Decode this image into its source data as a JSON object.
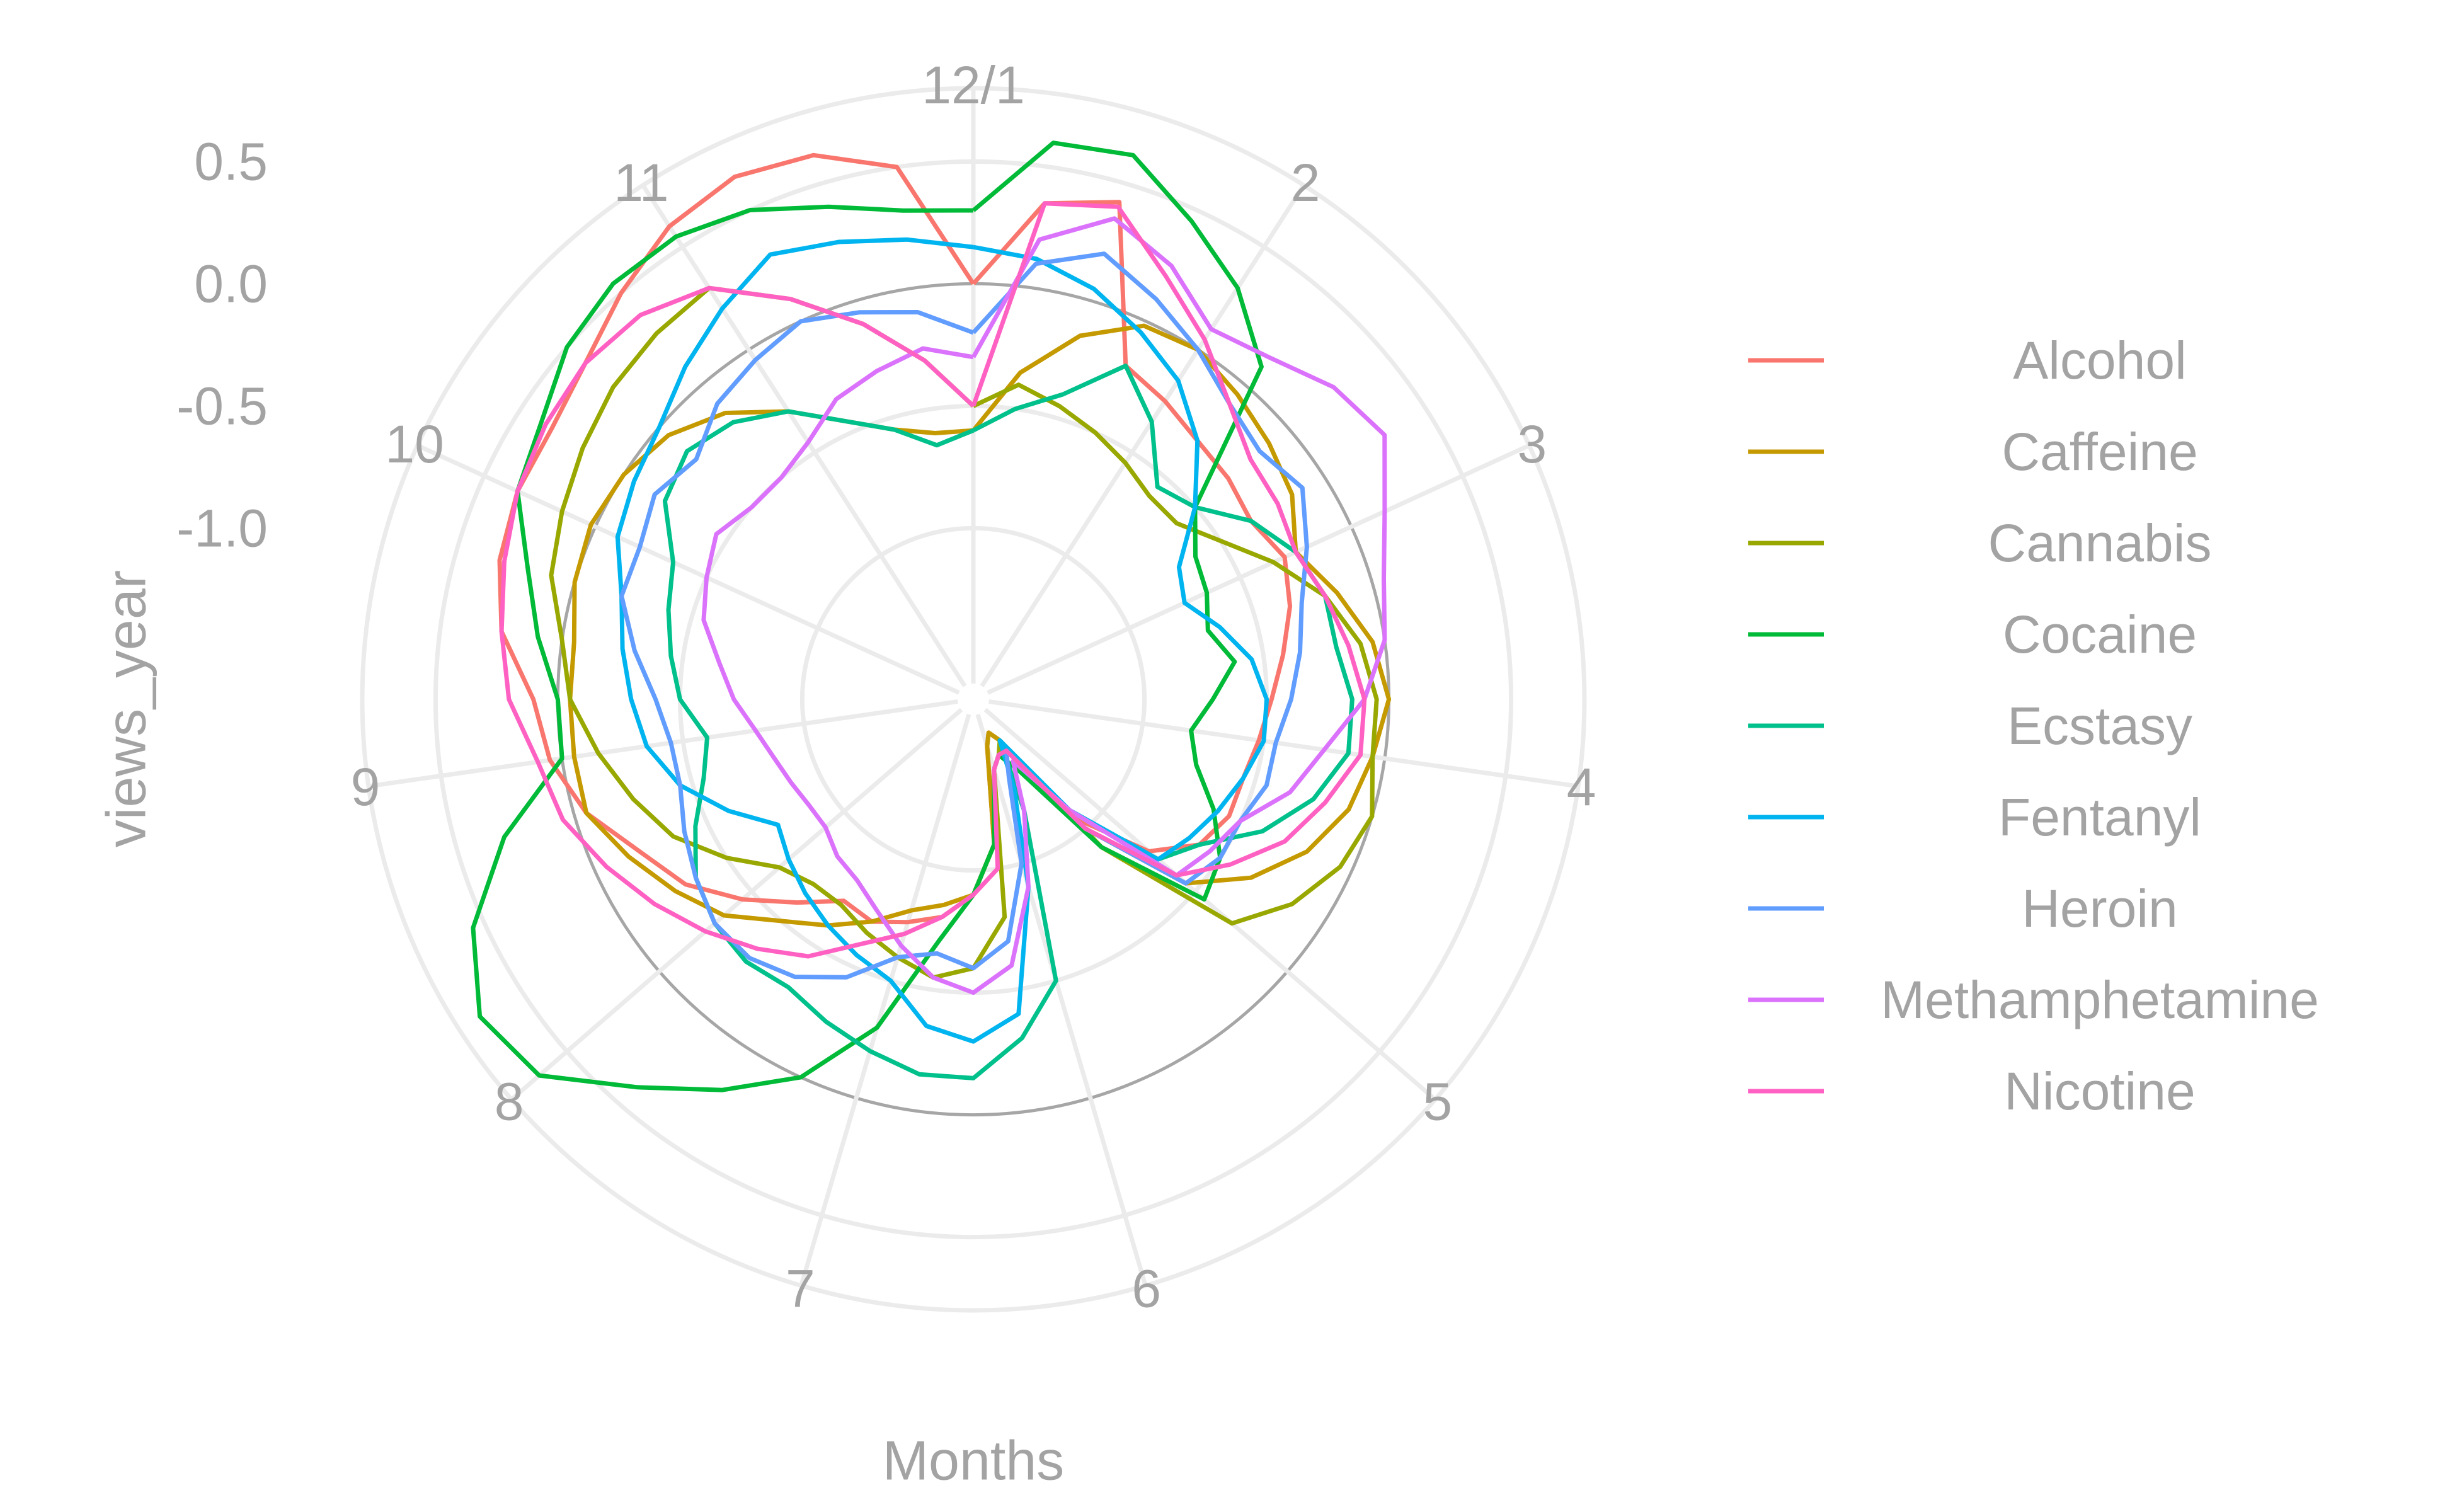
{
  "chart_data": {
    "type": "line",
    "coord": "polar",
    "xlabel": "Months",
    "ylabel": "views_year",
    "month_labels": [
      "12/1",
      "2",
      "3",
      "4",
      "5",
      "6",
      "7",
      "8",
      "9",
      "10",
      "11"
    ],
    "month_positions": [
      1,
      2,
      3,
      4,
      5,
      6,
      7,
      8,
      9,
      10,
      11
    ],
    "x_period": 11,
    "y_ticks": [
      -1.0,
      -0.5,
      0.0,
      0.5
    ],
    "y_tick_labels": [
      "-1.0",
      "-0.5",
      "0.0",
      "0.5"
    ],
    "ylim": [
      -1.7,
      0.8
    ],
    "grid": true,
    "legend_position": "right",
    "x": [
      1.0,
      1.25,
      1.5,
      1.75,
      2.0,
      2.25,
      2.5,
      2.75,
      3.0,
      3.25,
      3.5,
      3.75,
      4.0,
      4.25,
      4.5,
      4.75,
      5.0,
      5.25,
      5.5,
      5.75,
      6.0,
      6.25,
      6.5,
      6.75,
      7.0,
      7.25,
      7.5,
      7.75,
      8.0,
      8.25,
      8.5,
      8.75,
      9.0,
      9.25,
      9.5,
      9.75,
      10.0,
      10.25,
      10.5,
      10.75,
      11.0,
      11.25,
      11.5,
      11.75,
      12.0
    ],
    "series": [
      {
        "name": "Alcohol",
        "color": "#F8766D",
        "values": [
          0.0,
          0.35,
          0.42,
          -0.2,
          -0.25,
          -0.3,
          -0.32,
          -0.35,
          -0.3,
          -0.35,
          -0.42,
          -0.48,
          -0.52,
          -0.55,
          -0.55,
          -0.6,
          -0.75,
          -1.05,
          -1.5,
          -1.55,
          -1.5,
          -1.1,
          -0.9,
          -0.8,
          -0.75,
          -0.7,
          -0.72,
          -0.6,
          -0.45,
          -0.3,
          -0.2,
          -0.05,
          0.05,
          0.1,
          0.25,
          0.32,
          0.35,
          0.35,
          0.4,
          0.5,
          0.6,
          0.65,
          0.62,
          0.5,
          0.0
        ]
      },
      {
        "name": "Caffeine",
        "color": "#C49A00",
        "values": [
          -0.6,
          -0.35,
          -0.15,
          -0.02,
          0.0,
          -0.05,
          -0.1,
          -0.15,
          -0.25,
          -0.15,
          -0.05,
          0.0,
          -0.05,
          -0.1,
          -0.2,
          -0.35,
          -0.55,
          -1.0,
          -1.5,
          -1.55,
          -1.5,
          -1.1,
          -0.9,
          -0.85,
          -0.8,
          -0.7,
          -0.6,
          -0.5,
          -0.35,
          -0.25,
          -0.15,
          -0.05,
          -0.05,
          -0.05,
          -0.05,
          0.0,
          0.02,
          0.0,
          -0.05,
          -0.15,
          -0.3,
          -0.45,
          -0.55,
          -0.6,
          -0.6
        ]
      },
      {
        "name": "Cannabis",
        "color": "#99A800",
        "values": [
          -0.5,
          -0.4,
          -0.45,
          -0.5,
          -0.55,
          -0.6,
          -0.6,
          -0.5,
          -0.35,
          -0.2,
          -0.1,
          -0.05,
          -0.05,
          0.0,
          -0.05,
          -0.15,
          -0.3,
          -0.9,
          -1.5,
          -1.45,
          -1.4,
          -0.8,
          -0.6,
          -0.55,
          -0.6,
          -0.65,
          -0.7,
          -0.7,
          -0.65,
          -0.5,
          -0.35,
          -0.25,
          -0.15,
          -0.05,
          0.0,
          0.1,
          0.15,
          0.2,
          0.25,
          0.28,
          0.3,
          0.1,
          -0.1,
          -0.3,
          -0.5
        ]
      },
      {
        "name": "Cocaine",
        "color": "#00BA38",
        "values": [
          0.3,
          0.6,
          0.62,
          0.45,
          0.3,
          0.1,
          -0.5,
          -0.62,
          -0.65,
          -0.7,
          -0.62,
          -0.72,
          -0.8,
          -0.75,
          -0.62,
          -0.5,
          -0.45,
          -0.9,
          -1.35,
          -1.45,
          -1.4,
          -1.1,
          -0.9,
          -0.7,
          -0.3,
          0.0,
          0.2,
          0.4,
          0.65,
          0.7,
          0.55,
          0.3,
          0.0,
          0.0,
          0.1,
          0.2,
          0.35,
          0.4,
          0.5,
          0.55,
          0.55,
          0.5,
          0.4,
          0.32,
          0.3
        ]
      },
      {
        "name": "Ecstasy",
        "color": "#00C08B",
        "values": [
          -0.6,
          -0.5,
          -0.4,
          -0.2,
          -0.35,
          -0.55,
          -0.5,
          -0.35,
          -0.25,
          -0.2,
          -0.2,
          -0.15,
          -0.15,
          -0.25,
          -0.4,
          -0.6,
          -0.7,
          -1.1,
          -1.5,
          -1.2,
          -0.5,
          -0.3,
          -0.15,
          -0.15,
          -0.2,
          -0.25,
          -0.3,
          -0.28,
          -0.3,
          -0.35,
          -0.45,
          -0.55,
          -0.6,
          -0.5,
          -0.45,
          -0.4,
          -0.35,
          -0.2,
          -0.15,
          -0.2,
          -0.3,
          -0.45,
          -0.55,
          -0.65,
          -0.6
        ]
      },
      {
        "name": "Fentanyl",
        "color": "#00B4EF",
        "values": [
          0.15,
          0.12,
          0.05,
          -0.05,
          -0.15,
          -0.3,
          -0.5,
          -0.7,
          -0.75,
          -0.65,
          -0.55,
          -0.5,
          -0.5,
          -0.55,
          -0.6,
          -0.65,
          -0.7,
          -1.1,
          -1.5,
          -1.3,
          -0.9,
          -0.4,
          -0.3,
          -0.35,
          -0.5,
          -0.55,
          -0.6,
          -0.65,
          -0.7,
          -0.75,
          -0.6,
          -0.45,
          -0.35,
          -0.3,
          -0.25,
          -0.2,
          -0.1,
          -0.05,
          0.0,
          0.1,
          0.2,
          0.3,
          0.25,
          0.2,
          0.15
        ]
      },
      {
        "name": "Heroin",
        "color": "#619CFF",
        "values": [
          -0.2,
          0.1,
          0.2,
          0.1,
          0.0,
          -0.1,
          -0.15,
          -0.1,
          -0.2,
          -0.3,
          -0.35,
          -0.4,
          -0.45,
          -0.45,
          -0.5,
          -0.5,
          -0.55,
          -1.0,
          -1.45,
          -1.35,
          -1.0,
          -0.7,
          -0.6,
          -0.65,
          -0.6,
          -0.45,
          -0.35,
          -0.3,
          -0.3,
          -0.35,
          -0.4,
          -0.45,
          -0.45,
          -0.4,
          -0.3,
          -0.2,
          -0.2,
          -0.15,
          -0.2,
          -0.1,
          -0.05,
          0.0,
          -0.05,
          -0.1,
          -0.2
        ]
      },
      {
        "name": "Methamphetamine",
        "color": "#DB72FB",
        "values": [
          -0.3,
          0.2,
          0.35,
          0.25,
          0.1,
          0.15,
          0.25,
          0.3,
          0.15,
          0.05,
          0.0,
          -0.1,
          -0.25,
          -0.35,
          -0.5,
          -0.55,
          -0.6,
          -1.1,
          -1.4,
          -1.2,
          -0.9,
          -0.6,
          -0.5,
          -0.55,
          -0.65,
          -0.75,
          -0.82,
          -0.85,
          -0.9,
          -0.9,
          -0.88,
          -0.85,
          -0.8,
          -0.72,
          -0.65,
          -0.55,
          -0.5,
          -0.45,
          -0.5,
          -0.5,
          -0.45,
          -0.35,
          -0.3,
          -0.25,
          -0.3
        ]
      },
      {
        "name": "Nicotine",
        "color": "#FF61C3",
        "values": [
          -0.5,
          0.35,
          0.4,
          0.2,
          0.05,
          -0.1,
          -0.2,
          -0.22,
          -0.25,
          -0.2,
          -0.15,
          -0.1,
          -0.1,
          -0.2,
          -0.3,
          -0.45,
          -0.6,
          -1.0,
          -1.45,
          -1.45,
          -1.4,
          -1.0,
          -0.9,
          -0.8,
          -0.7,
          -0.6,
          -0.45,
          -0.35,
          -0.25,
          -0.15,
          -0.05,
          0.05,
          0.1,
          0.2,
          0.25,
          0.3,
          0.35,
          0.38,
          0.4,
          0.38,
          0.3,
          0.1,
          -0.1,
          -0.3,
          -0.5
        ]
      }
    ]
  }
}
